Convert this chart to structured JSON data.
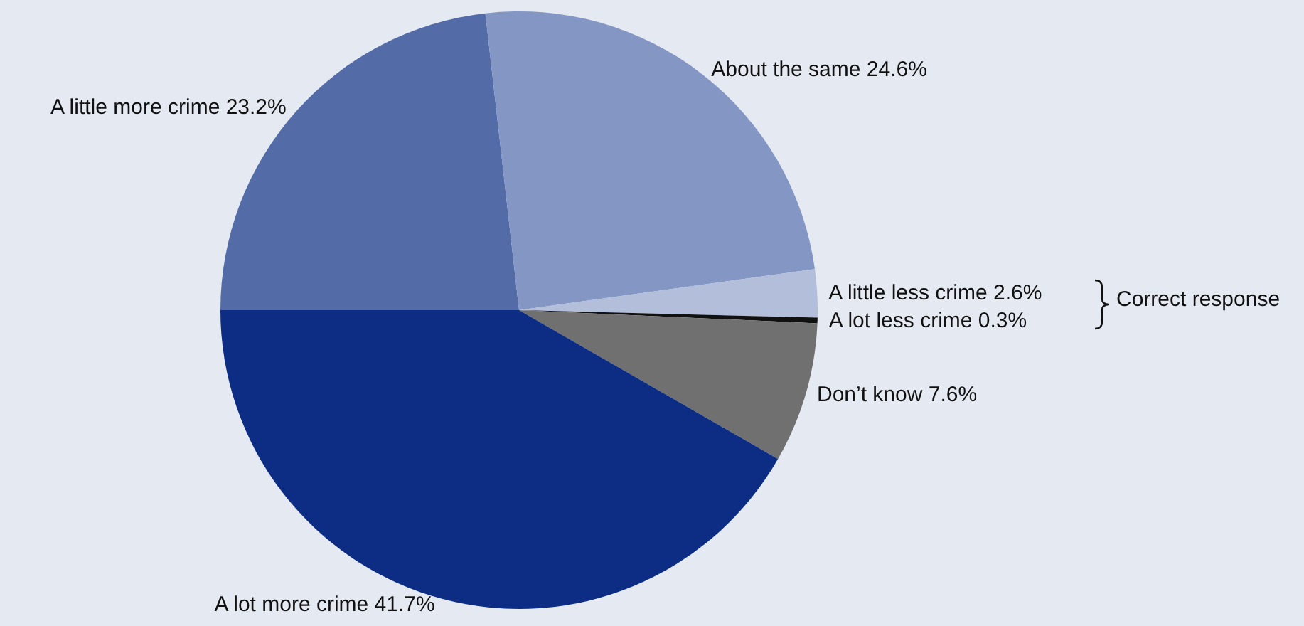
{
  "chart_data": {
    "type": "pie",
    "categories": [
      "A little more crime",
      "About the same",
      "A little less crime",
      "A lot less crime",
      "Don’t know",
      "A lot more crime"
    ],
    "values": [
      23.2,
      24.6,
      2.6,
      0.3,
      7.6,
      41.7
    ],
    "colors": [
      "#536ca8",
      "#8497c4",
      "#b3bedb",
      "#111111",
      "#707070",
      "#0c2d83"
    ],
    "value_labels": [
      "23.2%",
      "24.6%",
      "2.6%",
      "0.3%",
      "7.6%",
      "41.7%"
    ],
    "legend": false,
    "annotations": [
      "Correct response"
    ]
  }
}
